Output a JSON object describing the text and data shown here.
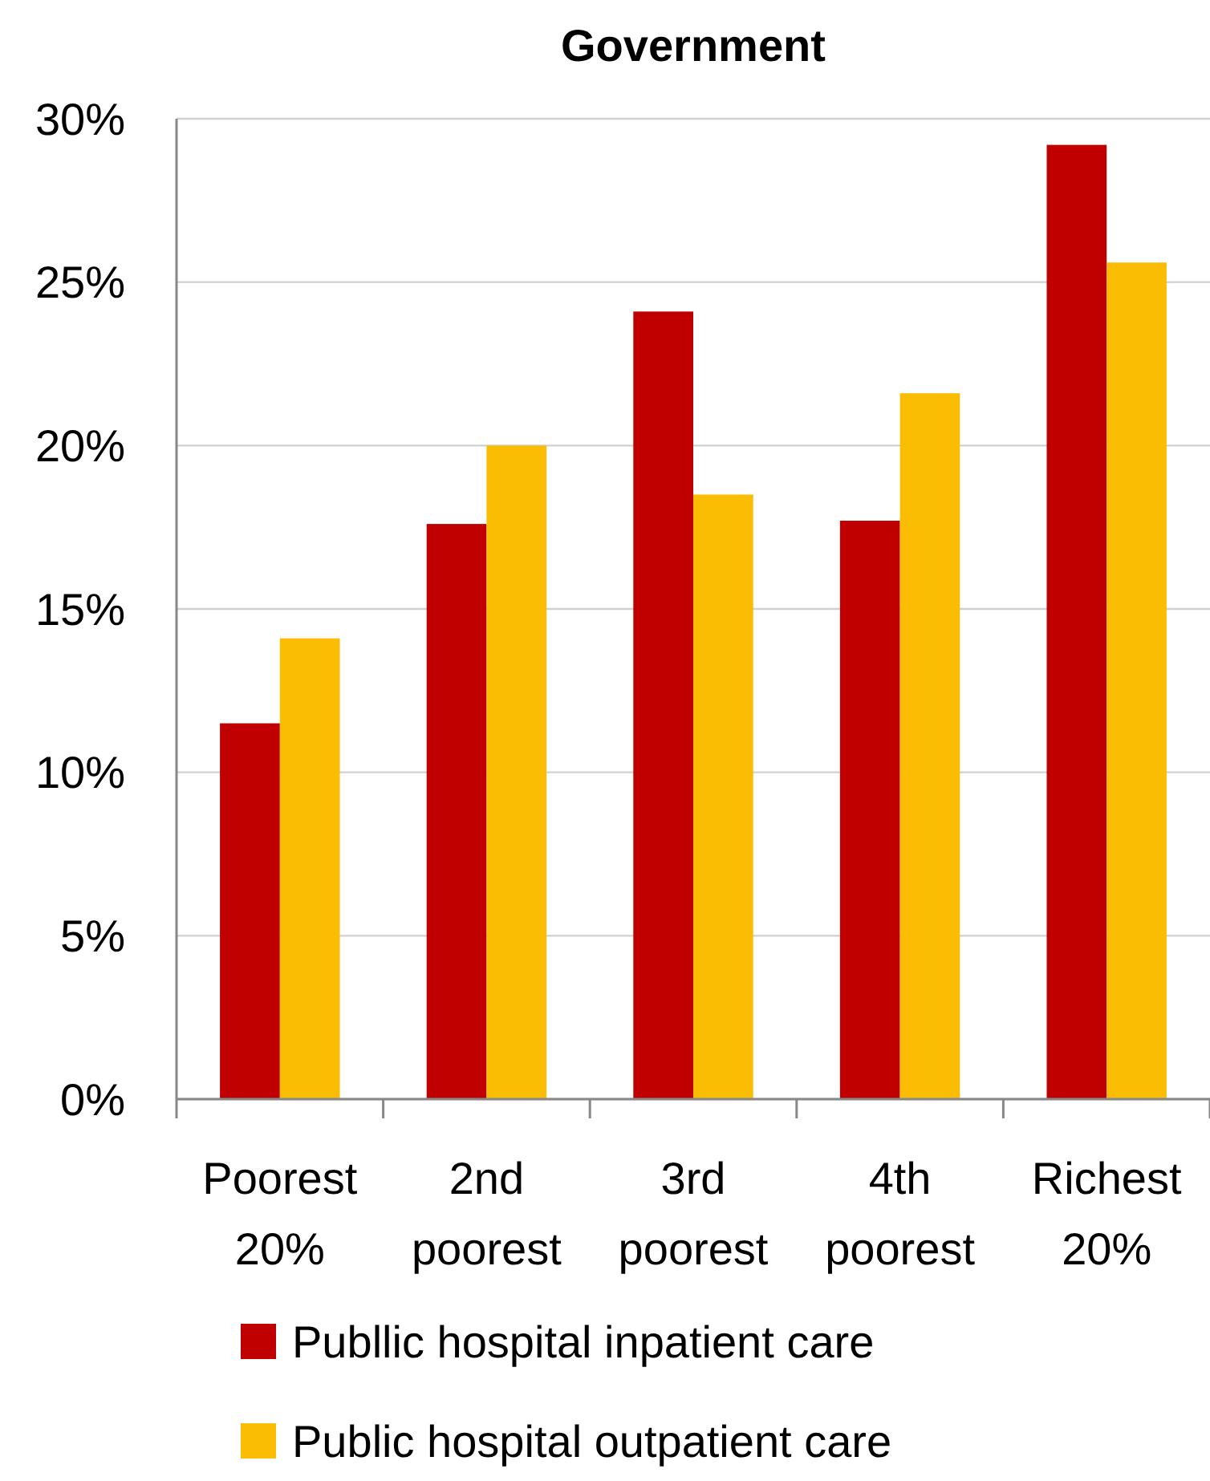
{
  "chart_data": {
    "type": "bar",
    "title": "Government",
    "categories": [
      "Poorest 20%",
      "2nd poorest",
      "3rd poorest",
      "4th poorest",
      "Richest 20%"
    ],
    "series": [
      {
        "name": "Publlic hospital inpatient care",
        "color": "#c00000",
        "values": [
          11.5,
          17.6,
          24.1,
          17.7,
          29.2
        ]
      },
      {
        "name": "Public hospital outpatient care",
        "color": "#fbbd04",
        "values": [
          14.1,
          20.0,
          18.5,
          21.6,
          25.6
        ]
      }
    ],
    "ylim": [
      0,
      30
    ],
    "yticks": [
      {
        "value": 0,
        "label": "0%"
      },
      {
        "value": 5,
        "label": "5%"
      },
      {
        "value": 10,
        "label": "10%"
      },
      {
        "value": 15,
        "label": "15%"
      },
      {
        "value": 20,
        "label": "20%"
      },
      {
        "value": 25,
        "label": "25%"
      },
      {
        "value": 30,
        "label": "30%"
      }
    ],
    "grid": "y",
    "legend": "bottom"
  }
}
